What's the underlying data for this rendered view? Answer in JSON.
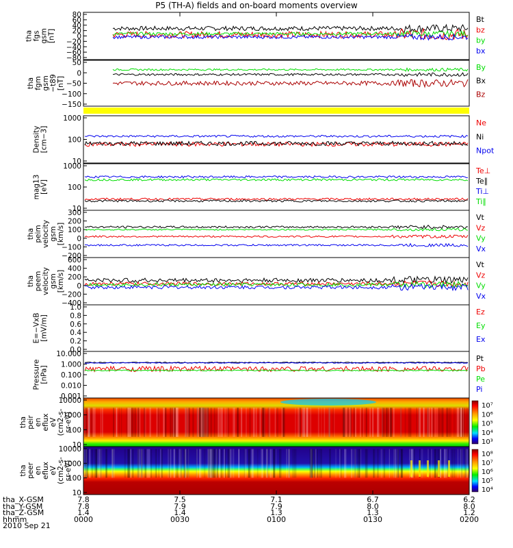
{
  "title": "P5 (TH-A) fields and on-board moments overview",
  "colors": {
    "black": "#000000",
    "red": "#ee0000",
    "green": "#00dd00",
    "blue": "#0000ee",
    "darkred": "#aa0000",
    "yellow": "#ffff00"
  },
  "chart_data": [
    {
      "type": "line",
      "ylabel": [
        "tha",
        "fgs",
        "gsm",
        "[nT]"
      ],
      "yticks": [
        "80",
        "60",
        "40",
        "20",
        "0",
        "−20",
        "−40",
        "−60",
        "−80"
      ],
      "ylim": [
        -80,
        80
      ],
      "legend": [
        "Bt",
        "bz",
        "by",
        "bx"
      ],
      "series": [
        {
          "name": "Bt",
          "color": "#000000",
          "level": 28,
          "amp": 8
        },
        {
          "name": "bz",
          "color": "#ee0000",
          "level": 5,
          "amp": 12
        },
        {
          "name": "by",
          "color": "#00dd00",
          "level": 8,
          "amp": 6
        },
        {
          "name": "bx",
          "color": "#0000ee",
          "level": -4,
          "amp": 6
        }
      ]
    },
    {
      "type": "line",
      "ylabel": [
        "tha",
        "fgm",
        "gsm",
        "−t89",
        "[nT]"
      ],
      "yticks": [
        "50",
        "0",
        "−50",
        "−100",
        "−150"
      ],
      "ylim": [
        -180,
        60
      ],
      "legend": [
        "By",
        "Bx",
        "Bz"
      ],
      "series": [
        {
          "name": "By",
          "color": "#00dd00",
          "level": 18,
          "amp": 5
        },
        {
          "name": "Bx",
          "color": "#000000",
          "level": -10,
          "amp": 6
        },
        {
          "name": "Bz",
          "color": "#aa0000",
          "level": -60,
          "amp": 12
        }
      ]
    },
    {
      "type": "bar",
      "ylabel": [],
      "yticks": [],
      "note": "yellow flag bar"
    },
    {
      "type": "line",
      "log": true,
      "ylabel": [
        "Density",
        "[cm−3]"
      ],
      "yticks": [
        "1000",
        "100",
        "10"
      ],
      "ylim": [
        10,
        1000
      ],
      "legend": [
        "Ne",
        "Ni",
        "Npot"
      ],
      "series": [
        {
          "name": "Ne",
          "color": "#ee0000",
          "level": 60,
          "amp": 0.1
        },
        {
          "name": "Ni",
          "color": "#000000",
          "level": 65,
          "amp": 0.1
        },
        {
          "name": "Npot",
          "color": "#0000ee",
          "level": 140,
          "amp": 0.05
        }
      ]
    },
    {
      "type": "line",
      "log": true,
      "ylabel": [
        "mag13",
        "[eV]"
      ],
      "yticks": [
        "1000",
        "100",
        "10"
      ],
      "ylim": [
        10,
        1000
      ],
      "legend": [
        "Te⊥",
        "Te∥",
        "Ti⊥",
        "Ti∥"
      ],
      "series": [
        {
          "name": "Te⊥",
          "color": "#ee0000",
          "level": 27,
          "amp": 0.05
        },
        {
          "name": "Te∥",
          "color": "#000000",
          "level": 22,
          "amp": 0.05
        },
        {
          "name": "Ti⊥",
          "color": "#0000ee",
          "level": 300,
          "amp": 0.05
        },
        {
          "name": "Ti∥",
          "color": "#00dd00",
          "level": 220,
          "amp": 0.05
        }
      ]
    },
    {
      "type": "line",
      "ylabel": [
        "tha",
        "peim",
        "velocity",
        "gsm",
        "[km/s]"
      ],
      "yticks": [
        "300",
        "200",
        "100",
        "0",
        "−100",
        "−200"
      ],
      "ylim": [
        -200,
        300
      ],
      "legend": [
        "Vt",
        "Vz",
        "Vy",
        "Vx"
      ],
      "series": [
        {
          "name": "Vt",
          "color": "#000000",
          "level": 130,
          "amp": 12
        },
        {
          "name": "Vz",
          "color": "#ee0000",
          "level": 20,
          "amp": 10
        },
        {
          "name": "Vy",
          "color": "#00dd00",
          "level": 100,
          "amp": 8
        },
        {
          "name": "Vx",
          "color": "#0000ee",
          "level": -80,
          "amp": 10
        }
      ]
    },
    {
      "type": "line",
      "ylabel": [
        "tha",
        "peem",
        "velocity",
        "gsm",
        "[km/s]"
      ],
      "yticks": [
        "600",
        "400",
        "200",
        "0",
        "−200",
        "−400"
      ],
      "ylim": [
        -400,
        600
      ],
      "legend": [
        "Vt",
        "Vz",
        "Vy",
        "Vx"
      ],
      "series": [
        {
          "name": "Vt",
          "color": "#000000",
          "level": 120,
          "amp": 50
        },
        {
          "name": "Vz",
          "color": "#ee0000",
          "level": 40,
          "amp": 40
        },
        {
          "name": "Vy",
          "color": "#00dd00",
          "level": 20,
          "amp": 40
        },
        {
          "name": "Vx",
          "color": "#0000ee",
          "level": -40,
          "amp": 40
        }
      ]
    },
    {
      "type": "line",
      "ylabel": [
        "E=−VxB",
        "[mV/m]"
      ],
      "yticks": [
        "1.0",
        "0.8",
        "0.6",
        "0.4",
        "0.2",
        "0.0"
      ],
      "ylim": [
        0,
        1
      ],
      "legend": [
        "Ez",
        "Ey",
        "Ex"
      ],
      "series": []
    },
    {
      "type": "line",
      "log": true,
      "ylabel": [
        "Pressure",
        "[nPa]"
      ],
      "yticks": [
        "10.000",
        "1.000",
        "0.100",
        "0.010",
        "0.001"
      ],
      "ylim": [
        0.001,
        10
      ],
      "legend": [
        "Pt",
        "Pb",
        "Pe",
        "Pi"
      ],
      "series": [
        {
          "name": "Pt",
          "color": "#000000",
          "level": 1.4,
          "amp": 0.04
        },
        {
          "name": "Pb",
          "color": "#ee0000",
          "level": 0.35,
          "amp": 0.25
        },
        {
          "name": "Pe",
          "color": "#00dd00",
          "level": 0.25,
          "amp": 0.05
        },
        {
          "name": "Pi",
          "color": "#0000ee",
          "level": 1.3,
          "amp": 0.04
        }
      ]
    },
    {
      "type": "heatmap",
      "ylabel": [
        "tha",
        "peir",
        "en",
        "eflux",
        "eV",
        "(cm2-s-",
        "sr-eV)"
      ],
      "yticks": [
        "10000",
        "1000",
        "100",
        "10"
      ],
      "colorbar": [
        "10⁷",
        "10⁶",
        "10⁵",
        "10⁴",
        "10³"
      ]
    },
    {
      "type": "heatmap",
      "ylabel": [
        "tha",
        "peer",
        "en",
        "eflux",
        "eV",
        "(cm2-s-",
        "sr-eV)"
      ],
      "yticks": [
        "10000",
        "1000",
        "100",
        "10"
      ],
      "colorbar": [
        "10⁸",
        "10⁷",
        "10⁶",
        "10⁵",
        "10⁴"
      ]
    }
  ],
  "xaxis": {
    "rows": [
      {
        "label": "tha_X-GSM",
        "values": [
          "7.8",
          "7.5",
          "7.1",
          "6.7",
          "6.2"
        ]
      },
      {
        "label": "tha_Y-GSM",
        "values": [
          "7.8",
          "7.9",
          "7.9",
          "8.0",
          "8.0"
        ]
      },
      {
        "label": "tha_Z-GSM",
        "values": [
          "1.4",
          "1.4",
          "1.3",
          "1.3",
          "1.2"
        ]
      },
      {
        "label": "hhmm",
        "values": [
          "0000",
          "0030",
          "0100",
          "0130",
          "0200"
        ]
      }
    ],
    "date": "2010 Sep 21"
  }
}
